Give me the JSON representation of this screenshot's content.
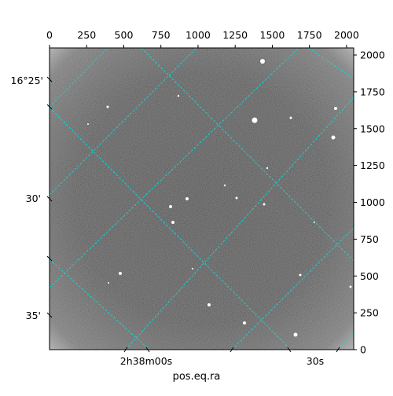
{
  "chart_data": {
    "type": "image",
    "xlabel": "pos.eq.ra",
    "colormap": "grayscale",
    "grid_color": "#00e5e5",
    "pixel_axes": {
      "xlim": [
        0,
        2048
      ],
      "ylim": [
        0,
        2048
      ],
      "top_ticks": [
        "0",
        "250",
        "500",
        "750",
        "1000",
        "1250",
        "1500",
        "1750",
        "2000"
      ],
      "right_ticks": [
        "0",
        "250",
        "500",
        "750",
        "1000",
        "1250",
        "1500",
        "1750",
        "2000"
      ]
    },
    "world_axes": {
      "ra_ticks": [
        "2h38m00s",
        "30s"
      ],
      "dec_ticks": [
        "16°25'",
        "30'",
        "35'"
      ]
    },
    "sources_visible": true
  }
}
